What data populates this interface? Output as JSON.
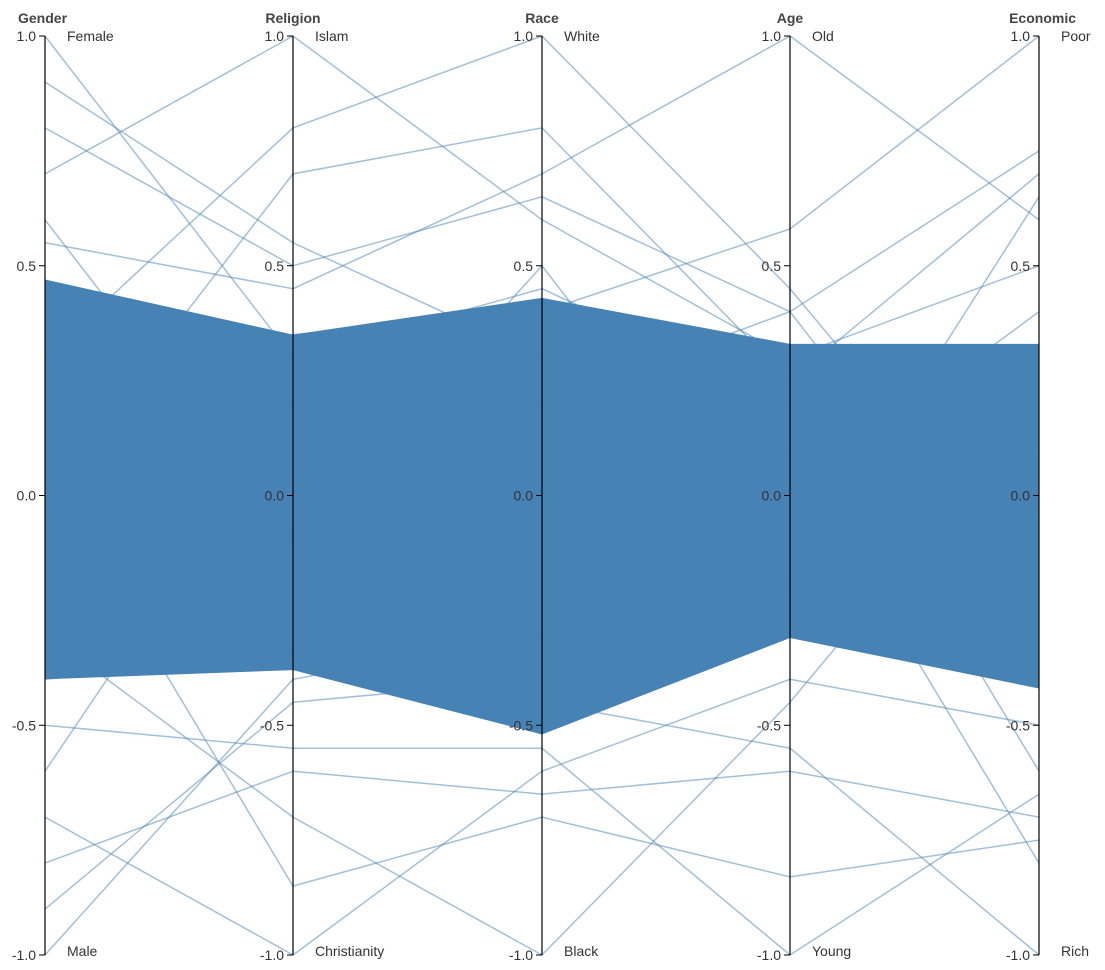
{
  "chart_data": {
    "type": "parallel-coordinates",
    "axes": [
      {
        "name": "Gender",
        "top_label": "Female",
        "bottom_label": "Male"
      },
      {
        "name": "Religion",
        "top_label": "Islam",
        "bottom_label": "Christianity"
      },
      {
        "name": "Race",
        "top_label": "White",
        "bottom_label": "Black"
      },
      {
        "name": "Age",
        "top_label": "Old",
        "bottom_label": "Young"
      },
      {
        "name": "Economic",
        "top_label": "Poor",
        "bottom_label": "Rich"
      }
    ],
    "ylim": [
      -1.0,
      1.0
    ],
    "ticks": [
      "1.0",
      "0.5",
      "0.0",
      "-0.5",
      "-1.0"
    ],
    "tick_values": [
      1.0,
      0.5,
      0.0,
      -0.5,
      -1.0
    ],
    "line_color": "#4682b4",
    "series": [
      {
        "values": [
          0.1,
          0.05,
          0.12,
          0.0,
          -0.05
        ]
      },
      {
        "values": [
          -0.1,
          -0.08,
          0.0,
          0.05,
          0.1
        ]
      },
      {
        "values": [
          0.25,
          0.15,
          0.2,
          0.1,
          0.05
        ]
      },
      {
        "values": [
          -0.25,
          -0.2,
          -0.15,
          -0.1,
          -0.2
        ]
      },
      {
        "values": [
          0.4,
          0.3,
          0.45,
          0.2,
          0.3
        ]
      },
      {
        "values": [
          -0.4,
          -0.35,
          -0.3,
          -0.25,
          -0.3
        ]
      },
      {
        "values": [
          1.0,
          0.3,
          0.2,
          0.4,
          -0.3
        ]
      },
      {
        "values": [
          -1.0,
          -0.4,
          -0.3,
          -0.2,
          0.3
        ]
      },
      {
        "values": [
          0.7,
          1.0,
          0.6,
          0.3,
          0.5
        ]
      },
      {
        "values": [
          -0.7,
          -1.0,
          -0.6,
          -0.4,
          -0.5
        ]
      },
      {
        "values": [
          0.3,
          0.8,
          1.0,
          0.45,
          -0.2
        ]
      },
      {
        "values": [
          -0.3,
          -0.7,
          -1.0,
          -0.45,
          0.2
        ]
      },
      {
        "values": [
          0.55,
          0.45,
          0.7,
          1.0,
          0.6
        ]
      },
      {
        "values": [
          -0.5,
          -0.55,
          -0.55,
          -1.0,
          -0.65
        ]
      },
      {
        "values": [
          0.2,
          0.35,
          0.4,
          0.58,
          1.0
        ]
      },
      {
        "values": [
          -0.2,
          -0.35,
          -0.45,
          -0.55,
          -1.0
        ]
      },
      {
        "values": [
          0.8,
          0.5,
          0.65,
          0.4,
          0.75
        ]
      },
      {
        "values": [
          -0.8,
          -0.6,
          -0.65,
          -0.6,
          -0.7
        ]
      },
      {
        "values": [
          0.6,
          -0.1,
          0.5,
          -0.2,
          0.65
        ]
      },
      {
        "values": [
          -0.6,
          0.2,
          -0.5,
          0.3,
          -0.6
        ]
      },
      {
        "values": [
          0.9,
          0.55,
          0.3,
          0.0,
          0.4
        ]
      },
      {
        "values": [
          -0.9,
          -0.45,
          -0.4,
          0.1,
          -0.8
        ]
      },
      {
        "values": [
          0.0,
          0.7,
          0.8,
          0.25,
          0.7
        ]
      },
      {
        "values": [
          0.05,
          -0.85,
          -0.7,
          -0.83,
          -0.75
        ]
      }
    ]
  }
}
